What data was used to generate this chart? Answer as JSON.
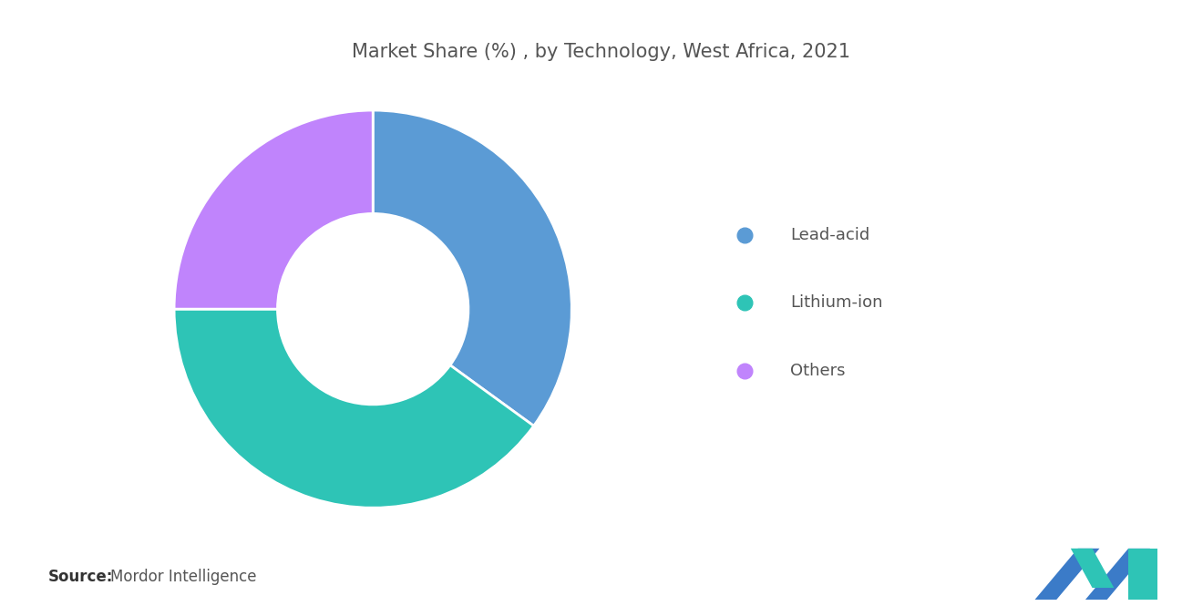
{
  "title": "Market Share (%) , by Technology, West Africa, 2021",
  "labels": [
    "Lead-acid",
    "Lithium-ion",
    "Others"
  ],
  "values": [
    35,
    40,
    25
  ],
  "wedge_colors": [
    "#5B9BD5",
    "#2EC4B6",
    "#C084FC"
  ],
  "background_color": "#FFFFFF",
  "title_fontsize": 15,
  "title_color": "#555555",
  "legend_fontsize": 13,
  "legend_text_color": "#555555",
  "source_bold": "Source:",
  "source_text": "Mordor Intelligence",
  "source_fontsize": 12,
  "donut_width": 0.52,
  "start_angle": 90
}
